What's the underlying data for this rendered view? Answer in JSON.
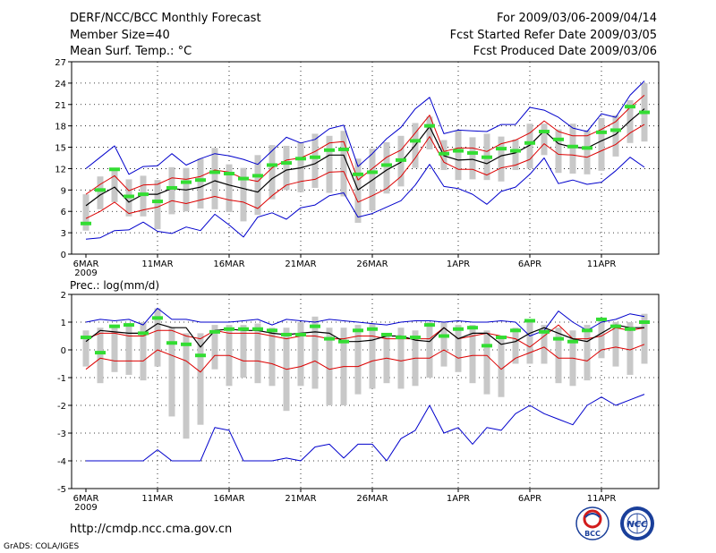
{
  "header": {
    "title": "DERF/NCC/BCC Monthly Forecast",
    "member_size": "Member Size=40",
    "variable": "Mean Surf. Temp.: °C",
    "period": "For 2009/03/06-2009/04/14",
    "refer_date": "Fcst Started Refer Date 2009/03/05",
    "produced_date": "Fcst Produced Date 2009/03/06"
  },
  "footer": {
    "url": "http://cmdp.ncc.cma.gov.cn",
    "credit": "GrADS: COLA/IGES",
    "logo_bcc_text": "BCC",
    "logo_ncc_text": "NCC"
  },
  "colors": {
    "box": "#c8c8c8",
    "green": "#33dd33",
    "blue": "#0000cc",
    "red": "#dd0000",
    "black": "#000000",
    "grid": "#000000"
  },
  "chart_data": [
    {
      "type": "box-ensemble",
      "title": "Mean Surf. Temp.: °C",
      "ylim": [
        0,
        27
      ],
      "yticks": [
        0,
        3,
        6,
        9,
        12,
        15,
        18,
        21,
        24,
        27
      ],
      "x_ticks": [
        {
          "day": 0,
          "label": "6MAR",
          "sublabel": "2009"
        },
        {
          "day": 5,
          "label": "11MAR"
        },
        {
          "day": 10,
          "label": "16MAR"
        },
        {
          "day": 15,
          "label": "21MAR"
        },
        {
          "day": 20,
          "label": "26MAR"
        },
        {
          "day": 26,
          "label": "1APR"
        },
        {
          "day": 31,
          "label": "6APR"
        },
        {
          "day": 36,
          "label": "11APR"
        }
      ],
      "n_days": 40,
      "series": [
        {
          "name": "max",
          "color": "blue",
          "values": [
            12.0,
            13.6,
            15.2,
            11.2,
            12.3,
            12.4,
            14.1,
            12.5,
            13.4,
            14.1,
            13.8,
            13.3,
            12.6,
            14.5,
            16.4,
            15.6,
            16.1,
            17.6,
            18.1,
            12.3,
            14.1,
            16.2,
            17.8,
            20.4,
            22.0,
            16.9,
            17.4,
            17.3,
            17.2,
            18.2,
            18.2,
            20.6,
            20.2,
            19.2,
            17.7,
            17.2,
            19.7,
            19.2,
            22.3,
            24.3
          ]
        },
        {
          "name": "upper",
          "color": "red",
          "values": [
            8.4,
            9.8,
            11.0,
            8.9,
            9.7,
            9.8,
            10.7,
            10.5,
            10.9,
            11.8,
            11.5,
            10.6,
            10.2,
            12.1,
            13.2,
            13.5,
            14.4,
            15.6,
            15.8,
            10.4,
            12.0,
            13.6,
            14.6,
            17.0,
            19.5,
            14.4,
            14.9,
            14.9,
            14.4,
            15.5,
            16.0,
            17.0,
            18.7,
            17.2,
            16.6,
            16.6,
            17.5,
            18.6,
            20.6,
            22.3
          ]
        },
        {
          "name": "mean",
          "color": "black",
          "values": [
            6.8,
            8.3,
            9.4,
            7.3,
            8.4,
            8.4,
            9.2,
            9.0,
            9.4,
            10.3,
            9.7,
            9.2,
            8.7,
            10.6,
            11.8,
            12.1,
            12.7,
            13.9,
            13.9,
            9.0,
            10.4,
            11.8,
            12.9,
            15.3,
            17.9,
            13.8,
            13.2,
            13.3,
            12.7,
            13.8,
            14.2,
            15.3,
            17.3,
            15.5,
            15.0,
            14.9,
            15.9,
            16.8,
            18.7,
            20.4
          ]
        },
        {
          "name": "lower",
          "color": "red",
          "values": [
            5.0,
            6.0,
            7.3,
            5.7,
            6.2,
            6.6,
            7.5,
            7.1,
            7.6,
            8.1,
            7.6,
            7.3,
            6.4,
            8.2,
            9.7,
            10.2,
            10.5,
            11.5,
            11.6,
            7.3,
            8.2,
            9.2,
            10.9,
            13.5,
            16.5,
            12.9,
            11.9,
            11.9,
            11.1,
            12.1,
            12.5,
            13.3,
            15.5,
            14.0,
            13.9,
            13.6,
            14.5,
            15.4,
            17.0,
            18.2
          ]
        },
        {
          "name": "min",
          "color": "blue",
          "values": [
            2.1,
            2.3,
            3.3,
            3.4,
            4.5,
            3.2,
            2.9,
            3.8,
            3.3,
            5.6,
            4.1,
            2.4,
            5.2,
            5.8,
            4.9,
            6.5,
            6.9,
            8.2,
            8.6,
            5.2,
            5.7,
            6.6,
            7.5,
            9.7,
            12.6,
            9.5,
            9.2,
            8.4,
            7.0,
            8.8,
            9.4,
            11.2,
            13.5,
            9.9,
            10.4,
            9.8,
            10.1,
            11.7,
            13.6,
            12.2
          ]
        },
        {
          "name": "observed",
          "color": "green",
          "values": [
            4.3,
            9.0,
            11.9,
            8.1,
            8.4,
            7.4,
            9.3,
            10.1,
            10.4,
            11.5,
            11.3,
            10.6,
            11.0,
            12.5,
            12.8,
            13.4,
            13.6,
            14.6,
            14.7,
            11.2,
            11.5,
            12.5,
            13.2,
            15.9,
            18.0,
            14.1,
            14.5,
            14.2,
            13.6,
            14.8,
            14.5,
            15.6,
            17.2,
            16.1,
            15.1,
            14.9,
            17.1,
            17.4,
            20.7,
            19.9
          ]
        },
        {
          "name": "box_high",
          "color": "box",
          "values": [
            8.4,
            10.9,
            12.0,
            10.5,
            11.0,
            10.4,
            12.2,
            12.1,
            13.4,
            14.9,
            12.6,
            12.1,
            13.9,
            15.3,
            15.2,
            15.7,
            16.9,
            16.6,
            17.3,
            13.4,
            14.8,
            15.7,
            16.6,
            18.4,
            19.3,
            16.0,
            17.4,
            16.4,
            16.9,
            16.5,
            16.1,
            18.3,
            18.3,
            17.5,
            18.3,
            17.4,
            19.1,
            19.5,
            21.6,
            24.0
          ]
        },
        {
          "name": "box_low",
          "color": "box",
          "values": [
            3.3,
            6.3,
            7.3,
            5.3,
            5.3,
            3.5,
            5.6,
            6.0,
            6.4,
            6.3,
            5.9,
            4.6,
            5.5,
            7.7,
            9.0,
            8.7,
            9.3,
            8.6,
            8.1,
            4.4,
            6.1,
            8.5,
            9.5,
            12.1,
            14.7,
            11.8,
            10.4,
            10.5,
            10.4,
            10.2,
            11.8,
            12.0,
            13.9,
            11.4,
            11.3,
            11.2,
            11.7,
            13.7,
            15.6,
            15.8
          ]
        }
      ]
    },
    {
      "type": "box-ensemble",
      "title": "Prec.: log(mm/d)",
      "ylim": [
        -5,
        2
      ],
      "yticks": [
        -5,
        -4,
        -3,
        -2,
        -1,
        0,
        1,
        2
      ],
      "x_ticks": [
        {
          "day": 0,
          "label": "6MAR",
          "sublabel": "2009"
        },
        {
          "day": 5,
          "label": "11MAR"
        },
        {
          "day": 10,
          "label": "16MAR"
        },
        {
          "day": 15,
          "label": "21MAR"
        },
        {
          "day": 20,
          "label": "26MAR"
        },
        {
          "day": 26,
          "label": "1APR"
        },
        {
          "day": 31,
          "label": "6APR"
        },
        {
          "day": 36,
          "label": "11APR"
        }
      ],
      "n_days": 40,
      "series": [
        {
          "name": "max",
          "color": "blue",
          "values": [
            1.0,
            1.1,
            1.05,
            1.1,
            0.9,
            1.5,
            1.1,
            1.1,
            1.0,
            1.0,
            1.0,
            1.05,
            1.1,
            0.9,
            1.1,
            1.05,
            1.0,
            1.1,
            1.05,
            1.0,
            0.95,
            0.9,
            1.0,
            1.05,
            1.05,
            1.0,
            1.05,
            1.0,
            1.0,
            1.05,
            1.0,
            0.5,
            0.7,
            1.4,
            1.0,
            0.7,
            1.0,
            1.1,
            1.3,
            1.2
          ]
        },
        {
          "name": "upper",
          "color": "red",
          "values": [
            0.4,
            0.6,
            0.6,
            0.5,
            0.5,
            0.7,
            0.7,
            0.5,
            0.4,
            0.7,
            0.6,
            0.6,
            0.6,
            0.5,
            0.4,
            0.5,
            0.5,
            0.4,
            0.4,
            0.5,
            0.5,
            0.4,
            0.4,
            0.4,
            0.4,
            0.8,
            0.4,
            0.5,
            0.6,
            0.5,
            0.4,
            0.1,
            0.5,
            0.9,
            0.4,
            0.4,
            0.5,
            0.8,
            0.7,
            0.8
          ]
        },
        {
          "name": "mean",
          "color": "black",
          "values": [
            0.3,
            0.7,
            0.65,
            0.6,
            0.6,
            0.95,
            0.8,
            0.8,
            0.1,
            0.7,
            0.75,
            0.7,
            0.7,
            0.6,
            0.55,
            0.6,
            0.65,
            0.6,
            0.3,
            0.3,
            0.35,
            0.5,
            0.5,
            0.35,
            0.3,
            0.8,
            0.4,
            0.6,
            0.6,
            0.2,
            0.3,
            0.6,
            0.8,
            0.6,
            0.4,
            0.3,
            0.6,
            0.9,
            0.8,
            0.8
          ]
        },
        {
          "name": "lower",
          "color": "red",
          "values": [
            -0.7,
            -0.3,
            -0.4,
            -0.4,
            -0.4,
            0.0,
            -0.2,
            -0.4,
            -0.8,
            -0.2,
            -0.2,
            -0.4,
            -0.4,
            -0.5,
            -0.7,
            -0.6,
            -0.4,
            -0.7,
            -0.6,
            -0.6,
            -0.4,
            -0.3,
            -0.4,
            -0.3,
            -0.3,
            0.0,
            -0.3,
            -0.2,
            -0.2,
            -0.7,
            -0.3,
            -0.1,
            0.1,
            -0.3,
            -0.3,
            -0.4,
            0.0,
            0.1,
            0.0,
            0.2
          ]
        },
        {
          "name": "min",
          "color": "blue",
          "values": [
            -4.0,
            -4.0,
            -4.0,
            -4.0,
            -4.0,
            -3.6,
            -4.0,
            -4.0,
            -4.0,
            -2.8,
            -2.9,
            -4.0,
            -4.0,
            -4.0,
            -3.9,
            -4.0,
            -3.5,
            -3.4,
            -3.9,
            -3.4,
            -3.4,
            -4.0,
            -3.2,
            -2.9,
            -2.0,
            -3.0,
            -2.8,
            -3.4,
            -2.8,
            -2.9,
            -2.3,
            -2.0,
            -2.3,
            -2.5,
            -2.7,
            -2.0,
            -1.7,
            -2.0,
            -1.8,
            -1.6
          ]
        },
        {
          "name": "observed",
          "color": "green",
          "values": [
            0.45,
            -0.1,
            0.85,
            0.9,
            0.6,
            1.15,
            0.25,
            0.2,
            -0.2,
            0.65,
            0.75,
            0.75,
            0.75,
            0.7,
            0.55,
            0.55,
            0.85,
            0.4,
            0.3,
            0.7,
            0.75,
            0.55,
            0.45,
            0.45,
            0.9,
            0.5,
            0.75,
            0.8,
            0.15,
            0.45,
            0.7,
            1.05,
            0.65,
            0.4,
            0.3,
            0.7,
            1.1,
            0.85,
            0.75,
            1.0
          ]
        },
        {
          "name": "box_high",
          "color": "box",
          "values": [
            0.7,
            0.8,
            0.8,
            0.9,
            1.0,
            1.5,
            0.8,
            0.6,
            0.6,
            0.9,
            0.9,
            0.9,
            0.95,
            0.8,
            0.8,
            1.0,
            1.2,
            0.8,
            0.8,
            0.9,
            0.95,
            0.6,
            0.8,
            0.7,
            1.0,
            1.0,
            0.9,
            0.9,
            0.7,
            0.4,
            0.8,
            1.0,
            0.9,
            0.8,
            0.7,
            0.9,
            1.1,
            1.0,
            1.0,
            1.3
          ]
        },
        {
          "name": "box_low",
          "color": "box",
          "values": [
            -0.6,
            -1.2,
            -0.8,
            -0.9,
            -1.1,
            -0.6,
            -2.4,
            -3.2,
            -2.7,
            -0.7,
            -1.3,
            -1.0,
            -1.2,
            -1.3,
            -2.2,
            -1.3,
            -1.4,
            -2.0,
            -2.0,
            -1.6,
            -1.4,
            -1.2,
            -1.4,
            -1.3,
            -1.0,
            -0.6,
            -0.8,
            -1.2,
            -1.6,
            -1.7,
            -0.5,
            -0.5,
            -0.5,
            -1.2,
            -1.3,
            -1.1,
            -0.3,
            -0.6,
            -0.9,
            -0.5
          ]
        }
      ]
    }
  ]
}
